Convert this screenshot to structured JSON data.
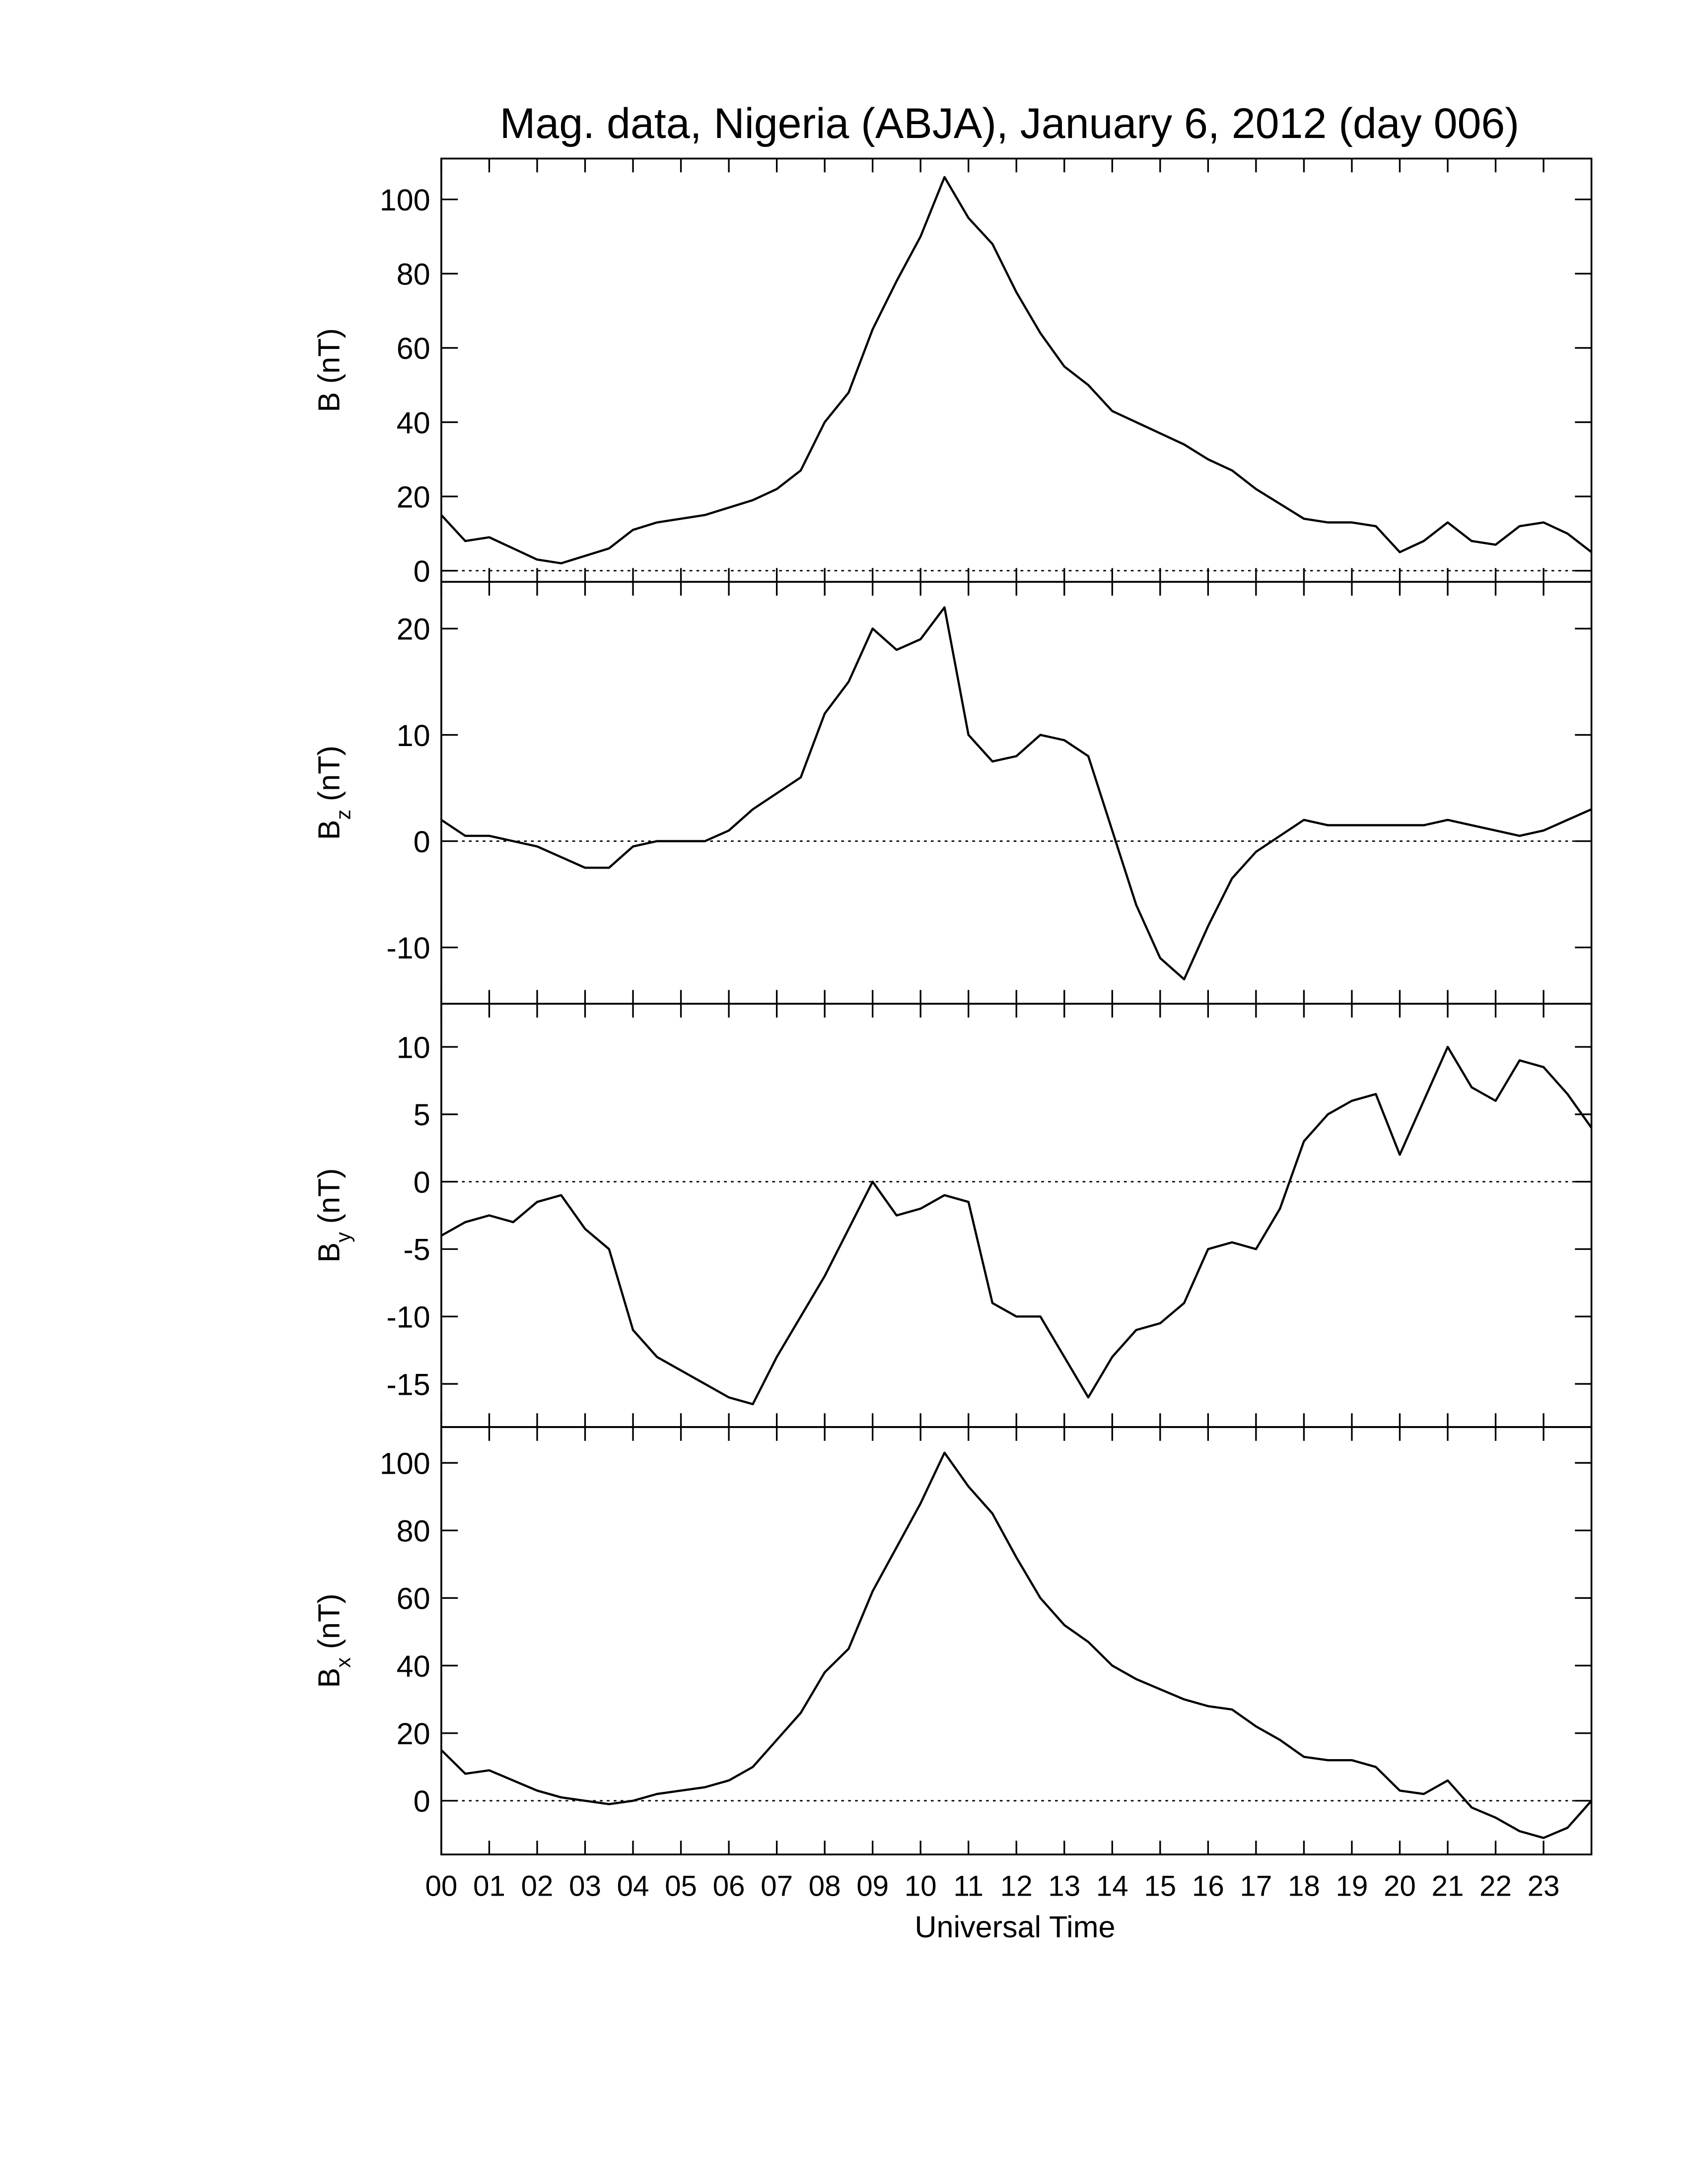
{
  "chart_data": [
    {
      "type": "line",
      "title": "Mag. data, Nigeria (ABJA), January 6, 2012 (day 006)",
      "ylabel": {
        "symbol": "B",
        "unit": "(nT)"
      },
      "x": [
        0,
        0.5,
        1,
        1.5,
        2,
        2.5,
        3,
        3.5,
        4,
        4.5,
        5,
        5.5,
        6,
        6.5,
        7,
        7.5,
        8,
        8.5,
        9,
        9.5,
        10,
        10.5,
        11,
        11.5,
        12,
        12.5,
        13,
        13.5,
        14,
        14.5,
        15,
        15.5,
        16,
        16.5,
        17,
        17.5,
        18,
        18.5,
        19,
        19.5,
        20,
        20.5,
        21,
        21.5,
        22,
        22.5,
        23,
        23.5,
        24
      ],
      "series": [
        {
          "color": "#000000",
          "values": [
            15,
            8,
            9,
            6,
            3,
            2,
            4,
            6,
            11,
            13,
            14,
            15,
            17,
            19,
            22,
            27,
            40,
            48,
            65,
            78,
            90,
            106,
            95,
            88,
            75,
            64,
            55,
            50,
            43,
            40,
            37,
            34,
            30,
            27,
            22,
            18,
            14,
            13,
            13,
            12,
            5,
            8,
            13,
            8,
            7,
            12,
            13,
            10,
            5
          ]
        }
      ],
      "xlim": [
        0,
        24
      ],
      "xticks": [
        0,
        1,
        2,
        3,
        4,
        5,
        6,
        7,
        8,
        9,
        10,
        11,
        12,
        13,
        14,
        15,
        16,
        17,
        18,
        19,
        20,
        21,
        22,
        23
      ],
      "ylim": [
        -3,
        111
      ],
      "yticks": [
        0,
        20,
        40,
        60,
        80,
        100
      ],
      "zero_line": true
    },
    {
      "type": "line",
      "ylabel": {
        "symbol": "B",
        "subscript": "z",
        "unit": "(nT)"
      },
      "x": [
        0,
        0.5,
        1,
        1.5,
        2,
        2.5,
        3,
        3.5,
        4,
        4.5,
        5,
        5.5,
        6,
        6.5,
        7,
        7.5,
        8,
        8.5,
        9,
        9.5,
        10,
        10.5,
        11,
        11.5,
        12,
        12.5,
        13,
        13.5,
        14,
        14.5,
        15,
        15.5,
        16,
        16.5,
        17,
        17.5,
        18,
        18.5,
        19,
        19.5,
        20,
        20.5,
        21,
        21.5,
        22,
        22.5,
        23,
        23.5,
        24
      ],
      "series": [
        {
          "color": "#000000",
          "values": [
            2,
            0.5,
            0.5,
            0,
            -0.5,
            -1.5,
            -2.5,
            -2.5,
            -0.5,
            0,
            0,
            0,
            1,
            3,
            4.5,
            6,
            12,
            15,
            20,
            18,
            19,
            22,
            10,
            7.5,
            8,
            10,
            9.5,
            8,
            1,
            -6,
            -11,
            -13,
            -8,
            -3.5,
            -1,
            0.5,
            2,
            1.5,
            1.5,
            1.5,
            1.5,
            1.5,
            2,
            1.5,
            1,
            0.5,
            1,
            2,
            3
          ]
        }
      ],
      "xlim": [
        0,
        24
      ],
      "xticks": [
        0,
        1,
        2,
        3,
        4,
        5,
        6,
        7,
        8,
        9,
        10,
        11,
        12,
        13,
        14,
        15,
        16,
        17,
        18,
        19,
        20,
        21,
        22,
        23
      ],
      "ylim": [
        -15.3,
        24.4
      ],
      "yticks": [
        -10,
        0,
        10,
        20
      ],
      "zero_line": true
    },
    {
      "type": "line",
      "ylabel": {
        "symbol": "B",
        "subscript": "y",
        "unit": "(nT)"
      },
      "x": [
        0,
        0.5,
        1,
        1.5,
        2,
        2.5,
        3,
        3.5,
        4,
        4.5,
        5,
        5.5,
        6,
        6.5,
        7,
        7.5,
        8,
        8.5,
        9,
        9.5,
        10,
        10.5,
        11,
        11.5,
        12,
        12.5,
        13,
        13.5,
        14,
        14.5,
        15,
        15.5,
        16,
        16.5,
        17,
        17.5,
        18,
        18.5,
        19,
        19.5,
        20,
        20.5,
        21,
        21.5,
        22,
        22.5,
        23,
        23.5,
        24
      ],
      "series": [
        {
          "color": "#000000",
          "values": [
            -4,
            -3,
            -2.5,
            -3,
            -1.5,
            -1,
            -3.5,
            -5,
            -11,
            -13,
            -14,
            -15,
            -16,
            -16.5,
            -13,
            -10,
            -7,
            -3.5,
            0,
            -2.5,
            -2,
            -1,
            -1.5,
            -9,
            -10,
            -10,
            -13,
            -16,
            -13,
            -11,
            -10.5,
            -9,
            -5,
            -4.5,
            -5,
            -2,
            3,
            5,
            6,
            6.5,
            2,
            6,
            10,
            7,
            6,
            9,
            8.5,
            6.5,
            4
          ]
        }
      ],
      "xlim": [
        0,
        24
      ],
      "xticks": [
        0,
        1,
        2,
        3,
        4,
        5,
        6,
        7,
        8,
        9,
        10,
        11,
        12,
        13,
        14,
        15,
        16,
        17,
        18,
        19,
        20,
        21,
        22,
        23
      ],
      "ylim": [
        -18.2,
        13.2
      ],
      "yticks": [
        -15,
        -10,
        -5,
        0,
        5,
        10
      ],
      "zero_line": true
    },
    {
      "type": "line",
      "ylabel": {
        "symbol": "B",
        "subscript": "x",
        "unit": "(nT)"
      },
      "xlabel": "Universal Time",
      "x": [
        0,
        0.5,
        1,
        1.5,
        2,
        2.5,
        3,
        3.5,
        4,
        4.5,
        5,
        5.5,
        6,
        6.5,
        7,
        7.5,
        8,
        8.5,
        9,
        9.5,
        10,
        10.5,
        11,
        11.5,
        12,
        12.5,
        13,
        13.5,
        14,
        14.5,
        15,
        15.5,
        16,
        16.5,
        17,
        17.5,
        18,
        18.5,
        19,
        19.5,
        20,
        20.5,
        21,
        21.5,
        22,
        22.5,
        23,
        23.5,
        24
      ],
      "series": [
        {
          "color": "#000000",
          "values": [
            15,
            8,
            9,
            6,
            3,
            1,
            0,
            -1,
            0,
            2,
            3,
            4,
            6,
            10,
            18,
            26,
            38,
            45,
            62,
            75,
            88,
            103,
            93,
            85,
            72,
            60,
            52,
            47,
            40,
            36,
            33,
            30,
            28,
            27,
            22,
            18,
            13,
            12,
            12,
            10,
            3,
            2,
            6,
            -2,
            -5,
            -9,
            -11,
            -8,
            0
          ]
        }
      ],
      "xlim": [
        0,
        24
      ],
      "xticks": [
        {
          "value": 0,
          "label": "00"
        },
        {
          "value": 1,
          "label": "01"
        },
        {
          "value": 2,
          "label": "02"
        },
        {
          "value": 3,
          "label": "03"
        },
        {
          "value": 4,
          "label": "04"
        },
        {
          "value": 5,
          "label": "05"
        },
        {
          "value": 6,
          "label": "06"
        },
        {
          "value": 7,
          "label": "07"
        },
        {
          "value": 8,
          "label": "08"
        },
        {
          "value": 9,
          "label": "09"
        },
        {
          "value": 10,
          "label": "10"
        },
        {
          "value": 11,
          "label": "11"
        },
        {
          "value": 12,
          "label": "12"
        },
        {
          "value": 13,
          "label": "13"
        },
        {
          "value": 14,
          "label": "14"
        },
        {
          "value": 15,
          "label": "15"
        },
        {
          "value": 16,
          "label": "16"
        },
        {
          "value": 17,
          "label": "17"
        },
        {
          "value": 18,
          "label": "18"
        },
        {
          "value": 19,
          "label": "19"
        },
        {
          "value": 20,
          "label": "20"
        },
        {
          "value": 21,
          "label": "21"
        },
        {
          "value": 22,
          "label": "22"
        },
        {
          "value": 23,
          "label": "23"
        }
      ],
      "ylim": [
        -15.9,
        110.6
      ],
      "yticks": [
        0,
        20,
        40,
        60,
        80,
        100
      ],
      "zero_line": true
    }
  ]
}
